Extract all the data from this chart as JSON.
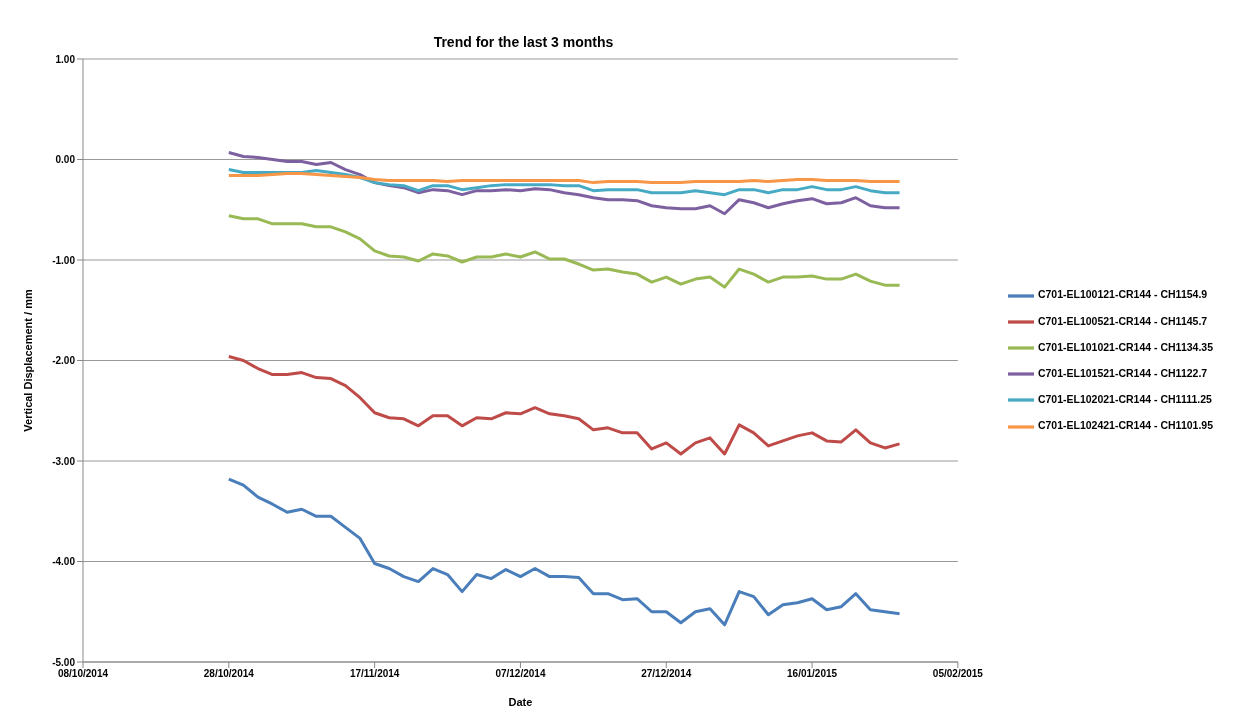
{
  "chart_data": {
    "type": "line",
    "title": "Trend for the last 3 months",
    "xlabel": "Date",
    "ylabel": "Vertical Displacement / mm",
    "x": [
      "2014-10-28",
      "2014-10-30",
      "2014-11-01",
      "2014-11-03",
      "2014-11-05",
      "2014-11-07",
      "2014-11-09",
      "2014-11-11",
      "2014-11-13",
      "2014-11-15",
      "2014-11-17",
      "2014-11-19",
      "2014-11-21",
      "2014-11-23",
      "2014-11-25",
      "2014-11-27",
      "2014-11-29",
      "2014-12-01",
      "2014-12-03",
      "2014-12-05",
      "2014-12-07",
      "2014-12-09",
      "2014-12-11",
      "2014-12-13",
      "2014-12-15",
      "2014-12-17",
      "2014-12-19",
      "2014-12-21",
      "2014-12-23",
      "2014-12-25",
      "2014-12-27",
      "2014-12-29",
      "2014-12-31",
      "2015-01-02",
      "2015-01-04",
      "2015-01-06",
      "2015-01-08",
      "2015-01-10",
      "2015-01-12",
      "2015-01-14",
      "2015-01-16",
      "2015-01-18",
      "2015-01-20",
      "2015-01-22",
      "2015-01-24",
      "2015-01-26",
      "2015-01-28"
    ],
    "series": [
      {
        "name": "C701-EL100121-CR144 - CH1154.9",
        "color": "#4a7ebb",
        "values": [
          -3.18,
          -3.24,
          -3.36,
          -3.43,
          -3.51,
          -3.48,
          -3.55,
          -3.55,
          -3.66,
          -3.77,
          -4.02,
          -4.07,
          -4.15,
          -4.2,
          -4.07,
          -4.13,
          -4.3,
          -4.13,
          -4.17,
          -4.08,
          -4.15,
          -4.07,
          -4.15,
          -4.15,
          -4.16,
          -4.32,
          -4.32,
          -4.38,
          -4.37,
          -4.5,
          -4.5,
          -4.61,
          -4.5,
          -4.47,
          -4.63,
          -4.3,
          -4.35,
          -4.53,
          -4.43,
          -4.41,
          -4.37,
          -4.48,
          -4.45,
          -4.32,
          -4.48,
          -4.5,
          -4.52
        ]
      },
      {
        "name": "C701-EL100521-CR144 - CH1145.7",
        "color": "#be4b48",
        "values": [
          -1.96,
          -2.0,
          -2.08,
          -2.14,
          -2.14,
          -2.12,
          -2.17,
          -2.18,
          -2.25,
          -2.37,
          -2.52,
          -2.57,
          -2.58,
          -2.65,
          -2.55,
          -2.55,
          -2.65,
          -2.57,
          -2.58,
          -2.52,
          -2.53,
          -2.47,
          -2.53,
          -2.55,
          -2.58,
          -2.69,
          -2.67,
          -2.72,
          -2.72,
          -2.88,
          -2.82,
          -2.93,
          -2.82,
          -2.77,
          -2.93,
          -2.64,
          -2.72,
          -2.85,
          -2.8,
          -2.75,
          -2.72,
          -2.8,
          -2.81,
          -2.69,
          -2.82,
          -2.87,
          -2.83
        ]
      },
      {
        "name": "C701-EL101021-CR144 - CH1134.35",
        "color": "#98b954",
        "values": [
          -0.56,
          -0.59,
          -0.59,
          -0.64,
          -0.64,
          -0.64,
          -0.67,
          -0.67,
          -0.72,
          -0.79,
          -0.91,
          -0.96,
          -0.97,
          -1.01,
          -0.94,
          -0.96,
          -1.02,
          -0.97,
          -0.97,
          -0.94,
          -0.97,
          -0.92,
          -0.99,
          -0.99,
          -1.04,
          -1.1,
          -1.09,
          -1.12,
          -1.14,
          -1.22,
          -1.17,
          -1.24,
          -1.19,
          -1.17,
          -1.27,
          -1.09,
          -1.14,
          -1.22,
          -1.17,
          -1.17,
          -1.16,
          -1.19,
          -1.19,
          -1.14,
          -1.21,
          -1.25,
          -1.25
        ]
      },
      {
        "name": "C701-EL101521-CR144 - CH1122.7",
        "color": "#7d60a0",
        "values": [
          0.07,
          0.03,
          0.02,
          0.0,
          -0.02,
          -0.02,
          -0.05,
          -0.03,
          -0.1,
          -0.15,
          -0.23,
          -0.26,
          -0.28,
          -0.33,
          -0.3,
          -0.31,
          -0.35,
          -0.31,
          -0.31,
          -0.3,
          -0.31,
          -0.29,
          -0.3,
          -0.33,
          -0.35,
          -0.38,
          -0.4,
          -0.4,
          -0.41,
          -0.46,
          -0.48,
          -0.49,
          -0.49,
          -0.46,
          -0.54,
          -0.4,
          -0.43,
          -0.48,
          -0.44,
          -0.41,
          -0.39,
          -0.44,
          -0.43,
          -0.38,
          -0.46,
          -0.48,
          -0.48
        ]
      },
      {
        "name": "C701-EL102021-CR144 - CH1111.25",
        "color": "#46aac5",
        "values": [
          -0.1,
          -0.13,
          -0.13,
          -0.13,
          -0.13,
          -0.13,
          -0.11,
          -0.13,
          -0.15,
          -0.18,
          -0.23,
          -0.25,
          -0.26,
          -0.31,
          -0.26,
          -0.26,
          -0.3,
          -0.28,
          -0.26,
          -0.25,
          -0.25,
          -0.25,
          -0.25,
          -0.26,
          -0.26,
          -0.31,
          -0.3,
          -0.3,
          -0.3,
          -0.33,
          -0.33,
          -0.33,
          -0.31,
          -0.33,
          -0.35,
          -0.3,
          -0.3,
          -0.33,
          -0.3,
          -0.3,
          -0.27,
          -0.3,
          -0.3,
          -0.27,
          -0.31,
          -0.33,
          -0.33
        ]
      },
      {
        "name": "C701-EL102421-CR144 - CH1101.95",
        "color": "#f79646",
        "values": [
          -0.16,
          -0.16,
          -0.16,
          -0.15,
          -0.14,
          -0.14,
          -0.15,
          -0.16,
          -0.17,
          -0.18,
          -0.2,
          -0.21,
          -0.21,
          -0.21,
          -0.21,
          -0.22,
          -0.21,
          -0.21,
          -0.21,
          -0.21,
          -0.21,
          -0.21,
          -0.21,
          -0.21,
          -0.21,
          -0.23,
          -0.22,
          -0.22,
          -0.22,
          -0.23,
          -0.23,
          -0.23,
          -0.22,
          -0.22,
          -0.22,
          -0.22,
          -0.21,
          -0.22,
          -0.21,
          -0.2,
          -0.2,
          -0.21,
          -0.21,
          -0.21,
          -0.22,
          -0.22,
          -0.22
        ]
      }
    ],
    "xlim": [
      "2014-10-08",
      "2015-02-05"
    ],
    "xticks": [
      {
        "value": "2014-10-08",
        "label": "08/10/2014"
      },
      {
        "value": "2014-10-28",
        "label": "28/10/2014"
      },
      {
        "value": "2014-11-17",
        "label": "17/11/2014"
      },
      {
        "value": "2014-12-07",
        "label": "07/12/2014"
      },
      {
        "value": "2014-12-27",
        "label": "27/12/2014"
      },
      {
        "value": "2015-01-16",
        "label": "16/01/2015"
      },
      {
        "value": "2015-02-05",
        "label": "05/02/2015"
      }
    ],
    "ylim": [
      -5,
      1
    ],
    "yticks": [
      {
        "value": -5,
        "label": "-5.00"
      },
      {
        "value": -4,
        "label": "-4.00"
      },
      {
        "value": -3,
        "label": "-3.00"
      },
      {
        "value": -2,
        "label": "-2.00"
      },
      {
        "value": -1,
        "label": "-1.00"
      },
      {
        "value": 0,
        "label": "0.00"
      },
      {
        "value": 1,
        "label": "1.00"
      }
    ],
    "grid": "y",
    "legend": "right",
    "marker": "none",
    "line_style": "solid"
  }
}
